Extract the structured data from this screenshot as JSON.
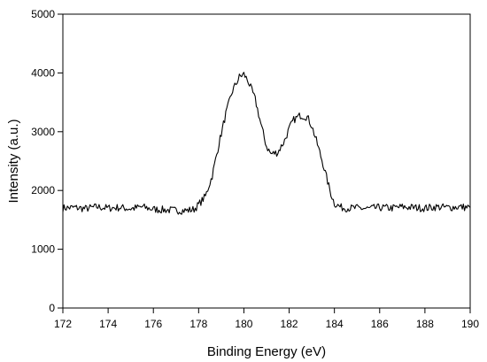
{
  "chart_data": {
    "type": "line",
    "title": "",
    "xlabel": "Binding Energy (eV)",
    "ylabel": "Intensity (a.u.)",
    "xlim": [
      172,
      190
    ],
    "ylim": [
      0,
      5000
    ],
    "xticks": [
      172,
      174,
      176,
      178,
      180,
      182,
      184,
      186,
      188,
      190
    ],
    "yticks": [
      0,
      1000,
      2000,
      3000,
      4000,
      5000
    ],
    "grid": false,
    "line_color": "#000000",
    "series": [
      {
        "x": [
          172.0,
          172.5,
          173.0,
          173.5,
          174.0,
          174.5,
          175.0,
          175.5,
          176.0,
          176.5,
          177.0,
          177.5,
          177.8,
          178.0,
          178.3,
          178.6,
          178.9,
          179.2,
          179.5,
          179.8,
          180.0,
          180.2,
          180.5,
          180.8,
          181.0,
          181.2,
          181.5,
          181.8,
          182.0,
          182.2,
          182.5,
          182.8,
          183.0,
          183.2,
          183.5,
          183.8,
          184.0,
          184.3,
          184.6,
          185.0,
          185.5,
          186.0,
          186.5,
          187.0,
          187.5,
          188.0,
          188.5,
          189.0,
          189.5,
          190.0
        ],
        "y": [
          1700,
          1710,
          1690,
          1720,
          1700,
          1710,
          1690,
          1720,
          1680,
          1670,
          1660,
          1660,
          1680,
          1760,
          1900,
          2250,
          2800,
          3300,
          3700,
          3930,
          3980,
          3850,
          3550,
          3050,
          2750,
          2620,
          2650,
          2850,
          3050,
          3200,
          3280,
          3250,
          3100,
          2850,
          2450,
          2000,
          1780,
          1710,
          1700,
          1700,
          1690,
          1710,
          1700,
          1720,
          1710,
          1700,
          1720,
          1710,
          1720,
          1710
        ]
      }
    ]
  }
}
